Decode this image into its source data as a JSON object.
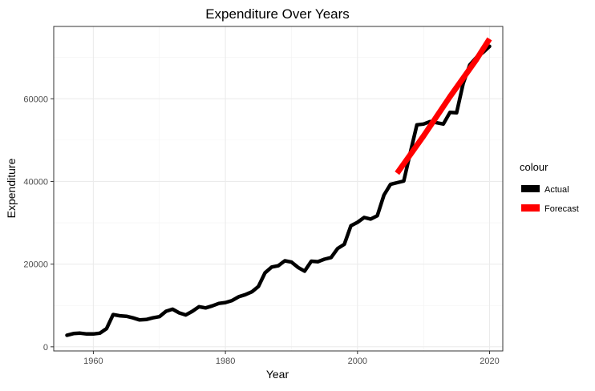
{
  "chart_data": {
    "type": "line",
    "title": "Expenditure Over Years",
    "xlabel": "Year",
    "ylabel": "Expenditure",
    "xlim": [
      1954,
      2022
    ],
    "ylim": [
      -1000,
      77500
    ],
    "xticks": [
      1960,
      1980,
      2000,
      2020
    ],
    "xtick_labels": [
      "1960",
      "1980",
      "2000",
      "2020"
    ],
    "yticks": [
      0,
      20000,
      40000,
      60000
    ],
    "ytick_labels": [
      "0",
      "20000",
      "40000",
      "60000"
    ],
    "grid": true,
    "legend": {
      "title": "colour",
      "position": "right",
      "entries": [
        {
          "label": "Actual",
          "color": "#000000"
        },
        {
          "label": "Forecast",
          "color": "#ff0000"
        }
      ]
    },
    "series": [
      {
        "name": "Actual",
        "color": "#000000",
        "x": [
          1956,
          1957,
          1958,
          1959,
          1960,
          1961,
          1962,
          1963,
          1964,
          1965,
          1966,
          1967,
          1968,
          1969,
          1970,
          1971,
          1972,
          1973,
          1974,
          1975,
          1976,
          1977,
          1978,
          1979,
          1980,
          1981,
          1982,
          1983,
          1984,
          1985,
          1986,
          1987,
          1988,
          1989,
          1990,
          1991,
          1992,
          1993,
          1994,
          1995,
          1996,
          1997,
          1998,
          1999,
          2000,
          2001,
          2002,
          2003,
          2004,
          2005,
          2006,
          2007,
          2008,
          2009,
          2010,
          2011,
          2012,
          2013,
          2014,
          2015,
          2016,
          2017,
          2018,
          2019,
          2020
        ],
        "y": [
          2800,
          3200,
          3300,
          3100,
          3100,
          3300,
          4400,
          7800,
          7500,
          7400,
          7000,
          6500,
          6600,
          7000,
          7300,
          8600,
          9100,
          8200,
          7700,
          8600,
          9700,
          9400,
          9900,
          10500,
          10700,
          11200,
          12100,
          12600,
          13300,
          14600,
          17900,
          19300,
          19600,
          20800,
          20500,
          19200,
          18300,
          20700,
          20600,
          21200,
          21600,
          23800,
          24800,
          29300,
          30100,
          31300,
          30900,
          31700,
          36700,
          39300,
          39700,
          40100,
          47000,
          53700,
          53900,
          54500,
          54200,
          53900,
          56700,
          56600,
          63700,
          68200,
          70000,
          71200,
          72700
        ]
      },
      {
        "name": "Forecast",
        "color": "#ff0000",
        "x": [
          2006,
          2010,
          2014,
          2018,
          2020
        ],
        "y": [
          42000,
          51000,
          60500,
          69500,
          74500
        ]
      }
    ]
  }
}
